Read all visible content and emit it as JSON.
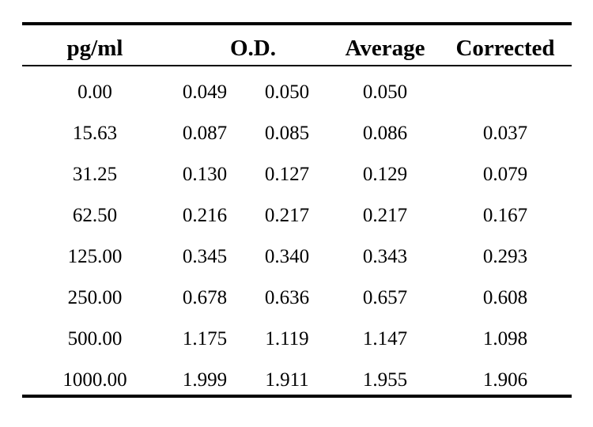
{
  "table": {
    "headers": {
      "pg_ml": "pg/ml",
      "od": "O.D.",
      "average": "Average",
      "corrected": "Corrected"
    },
    "rows": [
      {
        "pg_ml": "0.00",
        "od1": "0.049",
        "od2": "0.050",
        "average": "0.050",
        "corrected": ""
      },
      {
        "pg_ml": "15.63",
        "od1": "0.087",
        "od2": "0.085",
        "average": "0.086",
        "corrected": "0.037"
      },
      {
        "pg_ml": "31.25",
        "od1": "0.130",
        "od2": "0.127",
        "average": "0.129",
        "corrected": "0.079"
      },
      {
        "pg_ml": "62.50",
        "od1": "0.216",
        "od2": "0.217",
        "average": "0.217",
        "corrected": "0.167"
      },
      {
        "pg_ml": "125.00",
        "od1": "0.345",
        "od2": "0.340",
        "average": "0.343",
        "corrected": "0.293"
      },
      {
        "pg_ml": "250.00",
        "od1": "0.678",
        "od2": "0.636",
        "average": "0.657",
        "corrected": "0.608"
      },
      {
        "pg_ml": "500.00",
        "od1": "1.175",
        "od2": "1.119",
        "average": "1.147",
        "corrected": "1.098"
      },
      {
        "pg_ml": "1000.00",
        "od1": "1.999",
        "od2": "1.911",
        "average": "1.955",
        "corrected": "1.906"
      }
    ]
  }
}
